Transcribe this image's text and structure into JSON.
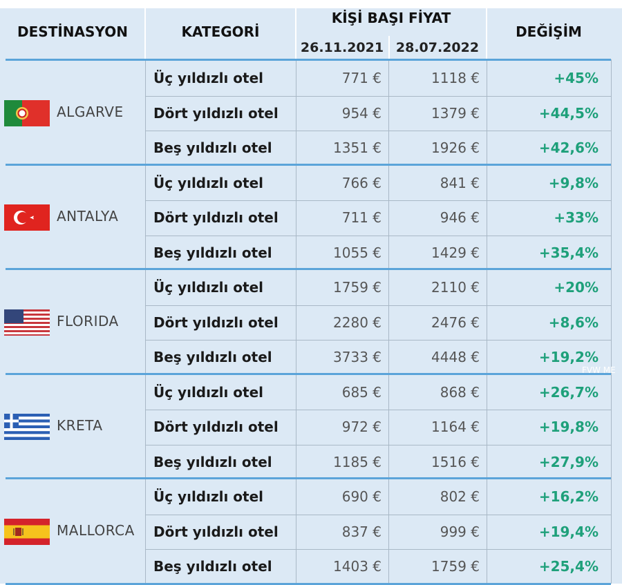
{
  "header": {
    "destination": "DESTİNASYON",
    "category": "KATEGORİ",
    "price_group": "KİŞİ BAŞI FİYAT",
    "date1": "26.11.2021",
    "date2": "28.07.2022",
    "change": "DEĞİŞİM"
  },
  "watermark": "FVW ME",
  "destinations": [
    {
      "name": "ALGARVE",
      "flag": "portugal-flag",
      "rows": [
        {
          "category": "Üç yıldızlı otel",
          "price1": "771 €",
          "price2": "1118 €",
          "change": "+45%"
        },
        {
          "category": "Dört yıldızlı otel",
          "price1": "954 €",
          "price2": "1379 €",
          "change": "+44,5%"
        },
        {
          "category": "Beş yıldızlı otel",
          "price1": "1351 €",
          "price2": "1926 €",
          "change": "+42,6%"
        }
      ]
    },
    {
      "name": "ANTALYA",
      "flag": "turkey-flag",
      "rows": [
        {
          "category": "Üç yıldızlı otel",
          "price1": "766 €",
          "price2": "841 €",
          "change": "+9,8%"
        },
        {
          "category": "Dört yıldızlı otel",
          "price1": "711 €",
          "price2": "946 €",
          "change": "+33%"
        },
        {
          "category": "Beş yıldızlı otel",
          "price1": "1055 €",
          "price2": "1429 €",
          "change": "+35,4%"
        }
      ]
    },
    {
      "name": "FLORIDA",
      "flag": "usa-flag",
      "rows": [
        {
          "category": "Üç yıldızlı otel",
          "price1": "1759 €",
          "price2": "2110 €",
          "change": "+20%"
        },
        {
          "category": "Dört yıldızlı otel",
          "price1": "2280 €",
          "price2": "2476 €",
          "change": "+8,6%"
        },
        {
          "category": "Beş yıldızlı otel",
          "price1": "3733 €",
          "price2": "4448 €",
          "change": "+19,2%"
        }
      ]
    },
    {
      "name": "KRETA",
      "flag": "greece-flag",
      "rows": [
        {
          "category": "Üç yıldızlı otel",
          "price1": "685 €",
          "price2": "868 €",
          "change": "+26,7%"
        },
        {
          "category": "Dört yıldızlı otel",
          "price1": "972 €",
          "price2": "1164 €",
          "change": "+19,8%"
        },
        {
          "category": "Beş yıldızlı otel",
          "price1": "1185 €",
          "price2": "1516 €",
          "change": "+27,9%"
        }
      ]
    },
    {
      "name": "MALLORCA",
      "flag": "spain-flag",
      "rows": [
        {
          "category": "Üç yıldızlı otel",
          "price1": "690 €",
          "price2": "802 €",
          "change": "+16,2%"
        },
        {
          "category": "Dört yıldızlı otel",
          "price1": "837 €",
          "price2": "999 €",
          "change": "+19,4%"
        },
        {
          "category": "Beş yıldızlı otel",
          "price1": "1403 €",
          "price2": "1759 €",
          "change": "+25,4%"
        }
      ]
    }
  ]
}
